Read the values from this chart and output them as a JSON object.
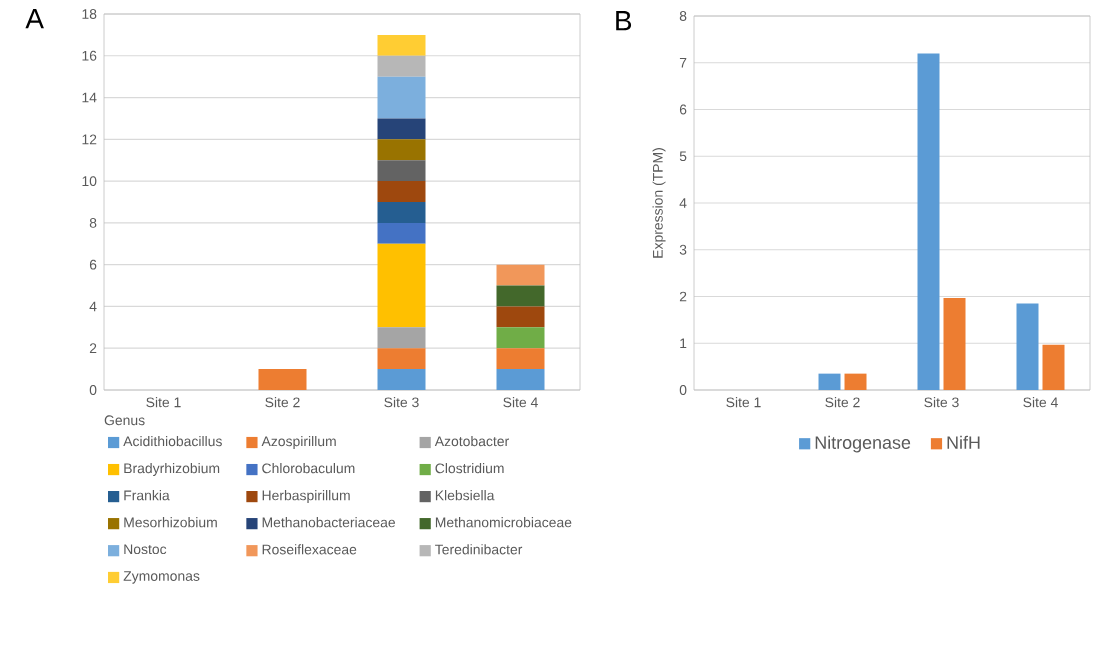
{
  "chart_data": [
    {
      "type": "bar",
      "title": "A",
      "stacked": true,
      "categories": [
        "Site 1",
        "Site 2",
        "Site 3",
        "Site 4"
      ],
      "ylim": [
        0,
        18
      ],
      "yticks": [
        0,
        2,
        4,
        6,
        8,
        10,
        12,
        14,
        16,
        18
      ],
      "grid": "y",
      "legend": "bottom",
      "legend_title": "Genus",
      "series": [
        {
          "name": "Acidithiobacillus",
          "color": "#5b9bd5",
          "values": [
            0,
            0,
            1,
            1
          ]
        },
        {
          "name": "Azospirillum",
          "color": "#ed7d31",
          "values": [
            0,
            1,
            1,
            1
          ]
        },
        {
          "name": "Azotobacter",
          "color": "#a5a5a5",
          "values": [
            0,
            0,
            1,
            0
          ]
        },
        {
          "name": "Bradyrhizobium",
          "color": "#ffc000",
          "values": [
            0,
            0,
            4,
            0
          ]
        },
        {
          "name": "Chlorobaculum",
          "color": "#4472c4",
          "values": [
            0,
            0,
            1,
            0
          ]
        },
        {
          "name": "Clostridium",
          "color": "#70ad47",
          "values": [
            0,
            0,
            0,
            1
          ]
        },
        {
          "name": "Frankia",
          "color": "#255e91",
          "values": [
            0,
            0,
            1,
            0
          ]
        },
        {
          "name": "Herbaspirillum",
          "color": "#9e480e",
          "values": [
            0,
            0,
            1,
            1
          ]
        },
        {
          "name": "Klebsiella",
          "color": "#636363",
          "values": [
            0,
            0,
            1,
            0
          ]
        },
        {
          "name": "Mesorhizobium",
          "color": "#997300",
          "values": [
            0,
            0,
            1,
            0
          ]
        },
        {
          "name": "Methanobacteriaceae",
          "color": "#264478",
          "values": [
            0,
            0,
            1,
            0
          ]
        },
        {
          "name": "Methanomicrobiaceae",
          "color": "#43682b",
          "values": [
            0,
            0,
            0,
            1
          ]
        },
        {
          "name": "Nostoc",
          "color": "#7cafdd",
          "values": [
            0,
            0,
            2,
            0
          ]
        },
        {
          "name": "Roseiflexaceae",
          "color": "#f1975a",
          "values": [
            0,
            0,
            0,
            1
          ]
        },
        {
          "name": "Teredinibacter",
          "color": "#b7b7b7",
          "values": [
            0,
            0,
            1,
            0
          ]
        },
        {
          "name": "Zymomonas",
          "color": "#ffcd33",
          "values": [
            0,
            0,
            1,
            0
          ]
        }
      ]
    },
    {
      "type": "bar",
      "title": "B",
      "ylabel": "Expression (TPM)",
      "categories": [
        "Site 1",
        "Site 2",
        "Site 3",
        "Site 4"
      ],
      "ylim": [
        0,
        8
      ],
      "yticks": [
        0,
        1,
        2,
        3,
        4,
        5,
        6,
        7,
        8
      ],
      "grid": "y",
      "legend": "bottom",
      "series": [
        {
          "name": "Nitrogenase",
          "color": "#5b9bd5",
          "values": [
            0,
            0.35,
            7.2,
            1.85
          ]
        },
        {
          "name": "NifH",
          "color": "#ed7d31",
          "values": [
            0,
            0.35,
            1.97,
            0.97
          ]
        }
      ]
    }
  ]
}
